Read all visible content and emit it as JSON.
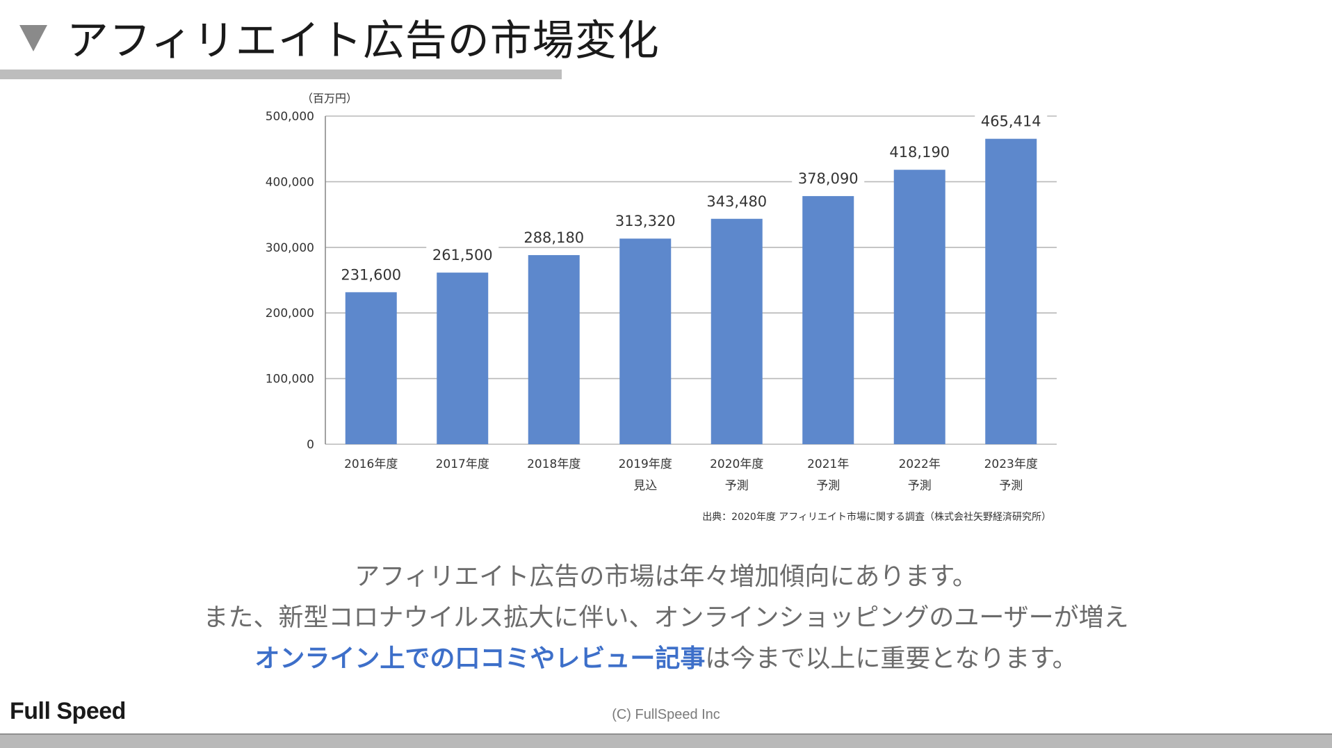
{
  "slide": {
    "title": "アフィリエイト広告の市場変化"
  },
  "chart_data": {
    "type": "bar",
    "unit_label": "（百万円）",
    "categories": [
      "2016年度",
      "2017年度",
      "2018年度",
      "2019年度",
      "2020年度",
      "2021年",
      "2022年",
      "2023年度"
    ],
    "category_notes": [
      "",
      "",
      "",
      "見込",
      "予測",
      "予測",
      "予測",
      "予測"
    ],
    "values": [
      231600,
      261500,
      288180,
      313320,
      343480,
      378090,
      418190,
      465414
    ],
    "value_labels": [
      "231,600",
      "261,500",
      "288,180",
      "313,320",
      "343,480",
      "378,090",
      "418,190",
      "465,414"
    ],
    "yticks": [
      0,
      100000,
      200000,
      300000,
      400000,
      500000
    ],
    "ytick_labels": [
      "0",
      "100,000",
      "200,000",
      "300,000",
      "400,000",
      "500,000"
    ],
    "ylim": [
      0,
      500000
    ],
    "grid": true,
    "bar_color": "#5d88cc",
    "source": "出典：2020年度 アフィリエイト市場に関する調査（株式会社矢野経済研究所）"
  },
  "description": {
    "line1": "アフィリエイト広告の市場は年々増加傾向にあります。",
    "line2": "また、新型コロナウイルス拡大に伴い、オンラインショッピングのユーザーが増え",
    "line3_highlight": "オンライン上での口コミやレビュー記事",
    "line3_rest": "は今まで以上に重要となります。"
  },
  "footer": {
    "logo": "Full Speed",
    "copyright": "(C) FullSpeed Inc"
  }
}
